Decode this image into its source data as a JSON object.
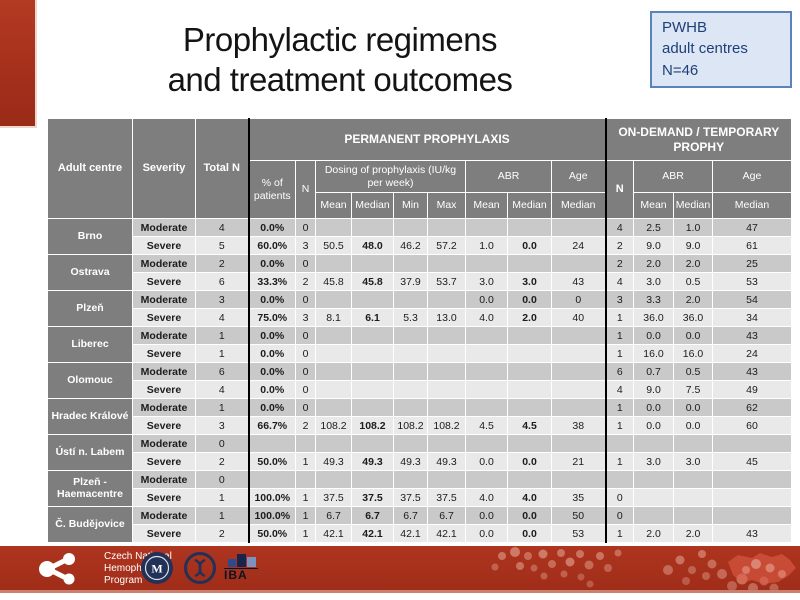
{
  "slide": {
    "title_line1": "Prophylactic regimens",
    "title_line2": "and treatment outcomes",
    "note_box": {
      "lines": [
        "PWHB",
        "adult centres",
        "N=46"
      ]
    }
  },
  "table": {
    "header": {
      "adult_centre": "Adult centre",
      "severity": "Severity",
      "total_n": "Total N",
      "permanent": "PERMANENT PROPHYLAXIS",
      "on_demand": "ON-DEMAND / TEMPORARY PROPHY",
      "pct_patients": "% of patients",
      "n": "N",
      "dosing": "Dosing of prophylaxis (IU/kg per week)",
      "abr": "ABR",
      "age": "Age",
      "mean": "Mean",
      "median": "Median",
      "min": "Min",
      "max": "Max"
    },
    "centres": [
      {
        "name": "Brno",
        "rows": [
          [
            "Moderate",
            "4",
            "0.0%",
            "0",
            "",
            "",
            "",
            "",
            "",
            "",
            "",
            "4",
            "2.5",
            "1.0",
            "47"
          ],
          [
            "Severe",
            "5",
            "60.0%",
            "3",
            "50.5",
            "48.0",
            "46.2",
            "57.2",
            "1.0",
            "0.0",
            "24",
            "2",
            "9.0",
            "9.0",
            "61"
          ]
        ]
      },
      {
        "name": "Ostrava",
        "rows": [
          [
            "Moderate",
            "2",
            "0.0%",
            "0",
            "",
            "",
            "",
            "",
            "",
            "",
            "",
            "2",
            "2.0",
            "2.0",
            "25"
          ],
          [
            "Severe",
            "6",
            "33.3%",
            "2",
            "45.8",
            "45.8",
            "37.9",
            "53.7",
            "3.0",
            "3.0",
            "43",
            "4",
            "3.0",
            "0.5",
            "53"
          ]
        ]
      },
      {
        "name": "Plzeň",
        "rows": [
          [
            "Moderate",
            "3",
            "0.0%",
            "0",
            "",
            "",
            "",
            "",
            "0.0",
            "0.0",
            "0",
            "3",
            "3.3",
            "2.0",
            "54"
          ],
          [
            "Severe",
            "4",
            "75.0%",
            "3",
            "8.1",
            "6.1",
            "5.3",
            "13.0",
            "4.0",
            "2.0",
            "40",
            "1",
            "36.0",
            "36.0",
            "34"
          ]
        ]
      },
      {
        "name": "Liberec",
        "rows": [
          [
            "Moderate",
            "1",
            "0.0%",
            "0",
            "",
            "",
            "",
            "",
            "",
            "",
            "",
            "1",
            "0.0",
            "0.0",
            "43"
          ],
          [
            "Severe",
            "1",
            "0.0%",
            "0",
            "",
            "",
            "",
            "",
            "",
            "",
            "",
            "1",
            "16.0",
            "16.0",
            "24"
          ]
        ]
      },
      {
        "name": "Olomouc",
        "rows": [
          [
            "Moderate",
            "6",
            "0.0%",
            "0",
            "",
            "",
            "",
            "",
            "",
            "",
            "",
            "6",
            "0.7",
            "0.5",
            "43"
          ],
          [
            "Severe",
            "4",
            "0.0%",
            "0",
            "",
            "",
            "",
            "",
            "",
            "",
            "",
            "4",
            "9.0",
            "7.5",
            "49"
          ]
        ]
      },
      {
        "name": "Hradec Králové",
        "rows": [
          [
            "Moderate",
            "1",
            "0.0%",
            "0",
            "",
            "",
            "",
            "",
            "",
            "",
            "",
            "1",
            "0.0",
            "0.0",
            "62"
          ],
          [
            "Severe",
            "3",
            "66.7%",
            "2",
            "108.2",
            "108.2",
            "108.2",
            "108.2",
            "4.5",
            "4.5",
            "38",
            "1",
            "0.0",
            "0.0",
            "60"
          ]
        ]
      },
      {
        "name": "Ústí n. Labem",
        "rows": [
          [
            "Moderate",
            "0",
            "",
            "",
            "",
            "",
            "",
            "",
            "",
            "",
            "",
            "",
            "",
            "",
            ""
          ],
          [
            "Severe",
            "2",
            "50.0%",
            "1",
            "49.3",
            "49.3",
            "49.3",
            "49.3",
            "0.0",
            "0.0",
            "21",
            "1",
            "3.0",
            "3.0",
            "45"
          ]
        ]
      },
      {
        "name": "Plzeň - Haemacentre",
        "rows": [
          [
            "Moderate",
            "0",
            "",
            "",
            "",
            "",
            "",
            "",
            "",
            "",
            "",
            "",
            "",
            "",
            ""
          ],
          [
            "Severe",
            "1",
            "100.0%",
            "1",
            "37.5",
            "37.5",
            "37.5",
            "37.5",
            "4.0",
            "4.0",
            "35",
            "0",
            "",
            "",
            ""
          ]
        ]
      },
      {
        "name": "Č. Budějovice",
        "rows": [
          [
            "Moderate",
            "1",
            "100.0%",
            "1",
            "6.7",
            "6.7",
            "6.7",
            "6.7",
            "0.0",
            "0.0",
            "50",
            "0",
            "",
            "",
            ""
          ],
          [
            "Severe",
            "2",
            "50.0%",
            "1",
            "42.1",
            "42.1",
            "42.1",
            "42.1",
            "0.0",
            "0.0",
            "53",
            "1",
            "2.0",
            "2.0",
            "43"
          ]
        ]
      }
    ]
  },
  "footer": {
    "program_lines": [
      "Czech National",
      "Hemophilia",
      "Program"
    ],
    "iba_label": "IBA",
    "seal_letters": "MU"
  },
  "colors": {
    "slide_red": "#a93320",
    "header_gray": "#7e7e7e",
    "row_moderate": "#c9c9c9",
    "row_severe": "#e9e9e9",
    "note_fill": "#dce6f4",
    "note_border": "#5b83bb",
    "note_text": "#1f4077"
  }
}
